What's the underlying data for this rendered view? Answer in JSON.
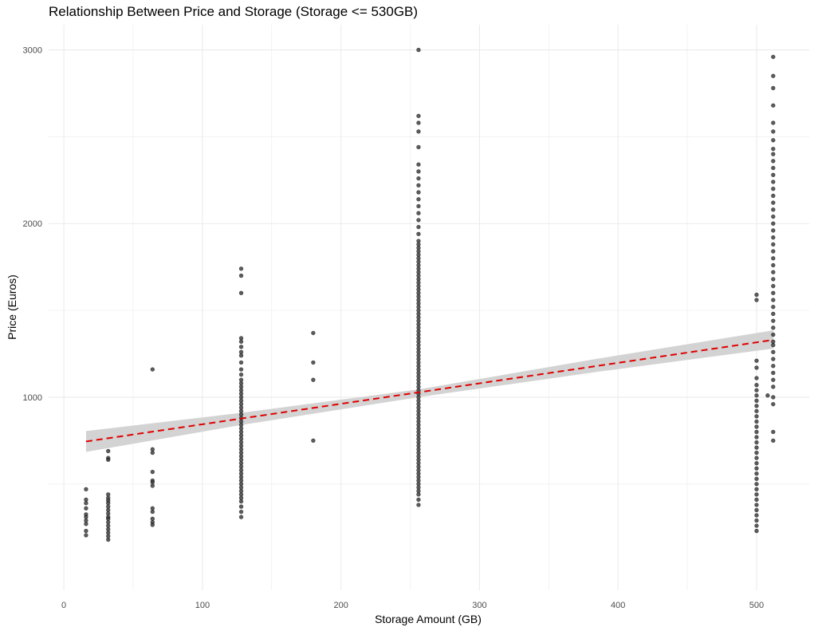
{
  "chart_data": {
    "type": "scatter",
    "title": "Relationship Between Price and Storage (Storage <= 530GB)",
    "xlabel": "Storage Amount (GB)",
    "ylabel": "Price (Euros)",
    "xlim": [
      -11,
      538
    ],
    "ylim": [
      -112,
      3145
    ],
    "x_ticks": [
      0,
      100,
      200,
      300,
      400,
      500
    ],
    "x_tick_labels": [
      "0",
      "100",
      "200",
      "300",
      "400",
      "500"
    ],
    "y_ticks": [
      1000,
      2000,
      3000
    ],
    "y_tick_labels": [
      "1000",
      "2000",
      "3000"
    ],
    "grid": true,
    "colors": {
      "points": "#333333",
      "trend_line": "#e00000",
      "confidence_band": "#d3d3d3",
      "grid": "#ebebeb"
    },
    "points": [
      [
        16,
        470
      ],
      [
        16,
        410
      ],
      [
        16,
        390
      ],
      [
        16,
        360
      ],
      [
        16,
        325
      ],
      [
        16,
        310
      ],
      [
        16,
        290
      ],
      [
        16,
        270
      ],
      [
        16,
        230
      ],
      [
        16,
        205
      ],
      [
        32,
        690
      ],
      [
        32,
        650
      ],
      [
        32,
        640
      ],
      [
        32,
        440
      ],
      [
        32,
        420
      ],
      [
        32,
        405
      ],
      [
        32,
        390
      ],
      [
        32,
        370
      ],
      [
        32,
        350
      ],
      [
        32,
        330
      ],
      [
        32,
        310
      ],
      [
        32,
        300
      ],
      [
        32,
        280
      ],
      [
        32,
        260
      ],
      [
        32,
        240
      ],
      [
        32,
        220
      ],
      [
        32,
        200
      ],
      [
        32,
        180
      ],
      [
        64,
        1160
      ],
      [
        64,
        700
      ],
      [
        64,
        680
      ],
      [
        64,
        570
      ],
      [
        64,
        520
      ],
      [
        64,
        510
      ],
      [
        64,
        490
      ],
      [
        64,
        360
      ],
      [
        64,
        340
      ],
      [
        64,
        300
      ],
      [
        64,
        280
      ],
      [
        64,
        265
      ],
      [
        128,
        1740
      ],
      [
        128,
        1700
      ],
      [
        128,
        1600
      ],
      [
        128,
        1340
      ],
      [
        128,
        1320
      ],
      [
        128,
        1290
      ],
      [
        128,
        1260
      ],
      [
        128,
        1240
      ],
      [
        128,
        1200
      ],
      [
        128,
        1160
      ],
      [
        128,
        1130
      ],
      [
        128,
        1100
      ],
      [
        128,
        1080
      ],
      [
        128,
        1060
      ],
      [
        128,
        1040
      ],
      [
        128,
        1020
      ],
      [
        128,
        1000
      ],
      [
        128,
        980
      ],
      [
        128,
        960
      ],
      [
        128,
        940
      ],
      [
        128,
        920
      ],
      [
        128,
        900
      ],
      [
        128,
        880
      ],
      [
        128,
        860
      ],
      [
        128,
        840
      ],
      [
        128,
        820
      ],
      [
        128,
        800
      ],
      [
        128,
        780
      ],
      [
        128,
        760
      ],
      [
        128,
        740
      ],
      [
        128,
        720
      ],
      [
        128,
        700
      ],
      [
        128,
        680
      ],
      [
        128,
        660
      ],
      [
        128,
        640
      ],
      [
        128,
        620
      ],
      [
        128,
        600
      ],
      [
        128,
        580
      ],
      [
        128,
        560
      ],
      [
        128,
        540
      ],
      [
        128,
        520
      ],
      [
        128,
        500
      ],
      [
        128,
        480
      ],
      [
        128,
        460
      ],
      [
        128,
        440
      ],
      [
        128,
        420
      ],
      [
        128,
        400
      ],
      [
        128,
        370
      ],
      [
        128,
        340
      ],
      [
        128,
        310
      ],
      [
        180,
        1370
      ],
      [
        180,
        1200
      ],
      [
        180,
        1100
      ],
      [
        180,
        750
      ],
      [
        256,
        3000
      ],
      [
        256,
        2620
      ],
      [
        256,
        2580
      ],
      [
        256,
        2530
      ],
      [
        256,
        2440
      ],
      [
        256,
        2340
      ],
      [
        256,
        2300
      ],
      [
        256,
        2260
      ],
      [
        256,
        2220
      ],
      [
        256,
        2180
      ],
      [
        256,
        2140
      ],
      [
        256,
        2100
      ],
      [
        256,
        2060
      ],
      [
        256,
        2020
      ],
      [
        256,
        1980
      ],
      [
        256,
        1940
      ],
      [
        256,
        1900
      ],
      [
        256,
        1880
      ],
      [
        256,
        1860
      ],
      [
        256,
        1840
      ],
      [
        256,
        1820
      ],
      [
        256,
        1800
      ],
      [
        256,
        1780
      ],
      [
        256,
        1760
      ],
      [
        256,
        1740
      ],
      [
        256,
        1720
      ],
      [
        256,
        1700
      ],
      [
        256,
        1680
      ],
      [
        256,
        1660
      ],
      [
        256,
        1640
      ],
      [
        256,
        1620
      ],
      [
        256,
        1600
      ],
      [
        256,
        1580
      ],
      [
        256,
        1560
      ],
      [
        256,
        1540
      ],
      [
        256,
        1520
      ],
      [
        256,
        1500
      ],
      [
        256,
        1480
      ],
      [
        256,
        1460
      ],
      [
        256,
        1440
      ],
      [
        256,
        1420
      ],
      [
        256,
        1400
      ],
      [
        256,
        1380
      ],
      [
        256,
        1360
      ],
      [
        256,
        1340
      ],
      [
        256,
        1320
      ],
      [
        256,
        1300
      ],
      [
        256,
        1280
      ],
      [
        256,
        1260
      ],
      [
        256,
        1240
      ],
      [
        256,
        1220
      ],
      [
        256,
        1200
      ],
      [
        256,
        1180
      ],
      [
        256,
        1160
      ],
      [
        256,
        1140
      ],
      [
        256,
        1120
      ],
      [
        256,
        1100
      ],
      [
        256,
        1080
      ],
      [
        256,
        1060
      ],
      [
        256,
        1040
      ],
      [
        256,
        1020
      ],
      [
        256,
        1000
      ],
      [
        256,
        980
      ],
      [
        256,
        960
      ],
      [
        256,
        940
      ],
      [
        256,
        920
      ],
      [
        256,
        900
      ],
      [
        256,
        880
      ],
      [
        256,
        860
      ],
      [
        256,
        840
      ],
      [
        256,
        820
      ],
      [
        256,
        800
      ],
      [
        256,
        780
      ],
      [
        256,
        760
      ],
      [
        256,
        740
      ],
      [
        256,
        720
      ],
      [
        256,
        700
      ],
      [
        256,
        680
      ],
      [
        256,
        660
      ],
      [
        256,
        640
      ],
      [
        256,
        620
      ],
      [
        256,
        600
      ],
      [
        256,
        580
      ],
      [
        256,
        560
      ],
      [
        256,
        540
      ],
      [
        256,
        520
      ],
      [
        256,
        500
      ],
      [
        256,
        480
      ],
      [
        256,
        460
      ],
      [
        256,
        440
      ],
      [
        256,
        410
      ],
      [
        256,
        380
      ],
      [
        500,
        1590
      ],
      [
        500,
        1560
      ],
      [
        500,
        1210
      ],
      [
        500,
        1170
      ],
      [
        500,
        1110
      ],
      [
        500,
        1070
      ],
      [
        500,
        1040
      ],
      [
        500,
        1010
      ],
      [
        500,
        980
      ],
      [
        500,
        950
      ],
      [
        500,
        920
      ],
      [
        500,
        890
      ],
      [
        500,
        860
      ],
      [
        500,
        830
      ],
      [
        500,
        800
      ],
      [
        500,
        770
      ],
      [
        500,
        740
      ],
      [
        500,
        710
      ],
      [
        500,
        680
      ],
      [
        500,
        650
      ],
      [
        500,
        620
      ],
      [
        500,
        590
      ],
      [
        500,
        560
      ],
      [
        500,
        530
      ],
      [
        500,
        500
      ],
      [
        500,
        470
      ],
      [
        500,
        440
      ],
      [
        500,
        410
      ],
      [
        500,
        380
      ],
      [
        500,
        350
      ],
      [
        500,
        320
      ],
      [
        500,
        290
      ],
      [
        500,
        260
      ],
      [
        500,
        230
      ],
      [
        508,
        1010
      ],
      [
        512,
        2960
      ],
      [
        512,
        2850
      ],
      [
        512,
        2780
      ],
      [
        512,
        2680
      ],
      [
        512,
        2580
      ],
      [
        512,
        2530
      ],
      [
        512,
        2480
      ],
      [
        512,
        2430
      ],
      [
        512,
        2400
      ],
      [
        512,
        2360
      ],
      [
        512,
        2320
      ],
      [
        512,
        2280
      ],
      [
        512,
        2240
      ],
      [
        512,
        2200
      ],
      [
        512,
        2160
      ],
      [
        512,
        2120
      ],
      [
        512,
        2080
      ],
      [
        512,
        2040
      ],
      [
        512,
        2000
      ],
      [
        512,
        1960
      ],
      [
        512,
        1920
      ],
      [
        512,
        1880
      ],
      [
        512,
        1840
      ],
      [
        512,
        1800
      ],
      [
        512,
        1760
      ],
      [
        512,
        1720
      ],
      [
        512,
        1680
      ],
      [
        512,
        1640
      ],
      [
        512,
        1600
      ],
      [
        512,
        1560
      ],
      [
        512,
        1520
      ],
      [
        512,
        1480
      ],
      [
        512,
        1440
      ],
      [
        512,
        1400
      ],
      [
        512,
        1360
      ],
      [
        512,
        1320
      ],
      [
        512,
        1300
      ],
      [
        512,
        1260
      ],
      [
        512,
        1220
      ],
      [
        512,
        1180
      ],
      [
        512,
        1140
      ],
      [
        512,
        1100
      ],
      [
        512,
        1060
      ],
      [
        512,
        1000
      ],
      [
        512,
        960
      ],
      [
        512,
        800
      ],
      [
        512,
        750
      ]
    ],
    "trend": {
      "type": "linear",
      "style": "dashed",
      "x": [
        16,
        512
      ],
      "y": [
        745,
        1330
      ]
    },
    "confidence_band": {
      "x": [
        16,
        128,
        256,
        384,
        512
      ],
      "lower": [
        685,
        840,
        1000,
        1145,
        1280
      ],
      "upper": [
        805,
        910,
        1045,
        1220,
        1385
      ]
    }
  }
}
